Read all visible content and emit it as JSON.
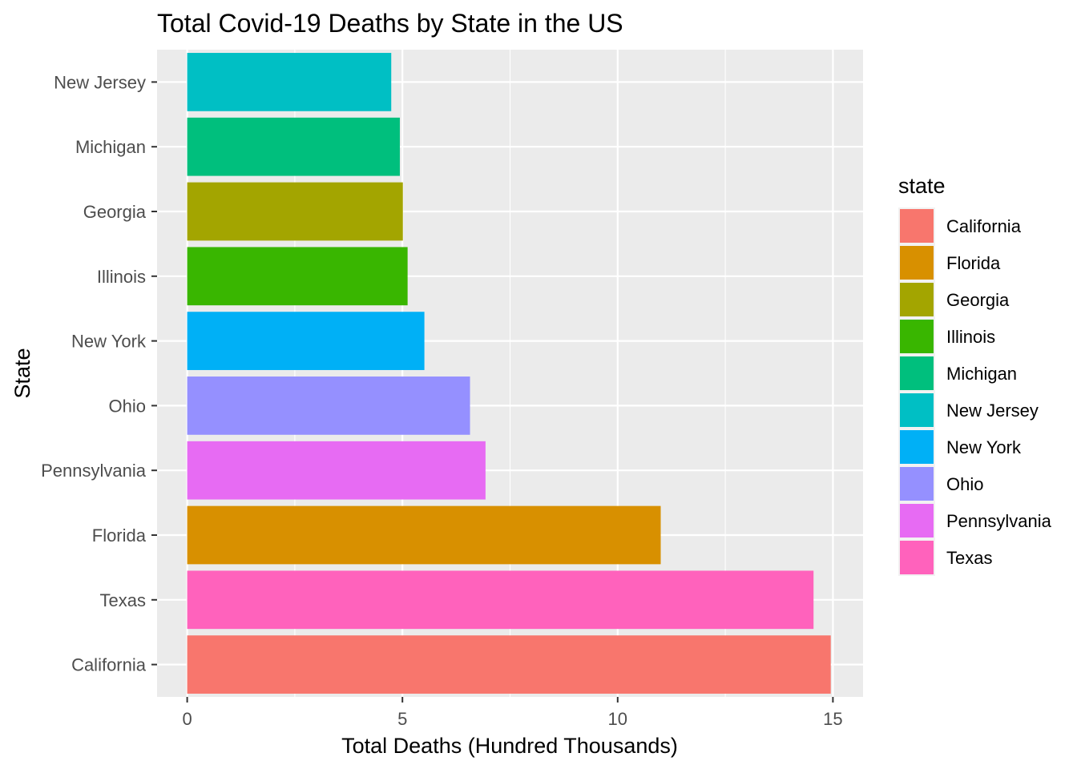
{
  "chart_data": {
    "type": "bar",
    "orientation": "horizontal",
    "title": "Total Covid-19 Deaths by State in the US",
    "xlabel": "Total Deaths (Hundred Thousands)",
    "ylabel": "State",
    "xlim": [
      -0.7,
      15.7
    ],
    "x_ticks": [
      0,
      5,
      10,
      15
    ],
    "x_tick_labels": [
      "0",
      "5",
      "10",
      "15"
    ],
    "grid": true,
    "categories": [
      "California",
      "Texas",
      "Florida",
      "Pennsylvania",
      "Ohio",
      "New York",
      "Illinois",
      "Georgia",
      "Michigan",
      "New Jersey"
    ],
    "values": [
      14.95,
      14.55,
      11.0,
      6.93,
      6.57,
      5.51,
      5.12,
      5.01,
      4.94,
      4.74
    ],
    "legend": {
      "title": "state",
      "position": "right",
      "items": [
        {
          "label": "California",
          "color": "#F8766D"
        },
        {
          "label": "Florida",
          "color": "#D89000"
        },
        {
          "label": "Georgia",
          "color": "#A3A500"
        },
        {
          "label": "Illinois",
          "color": "#39B600"
        },
        {
          "label": "Michigan",
          "color": "#00BF7D"
        },
        {
          "label": "New Jersey",
          "color": "#00BFC4"
        },
        {
          "label": "New York",
          "color": "#00B0F6"
        },
        {
          "label": "Ohio",
          "color": "#9590FF"
        },
        {
          "label": "Pennsylvania",
          "color": "#E76BF3"
        },
        {
          "label": "Texas",
          "color": "#FF62BC"
        }
      ]
    },
    "panel_background": "#EBEBEB",
    "grid_color": "#FFFFFF"
  }
}
